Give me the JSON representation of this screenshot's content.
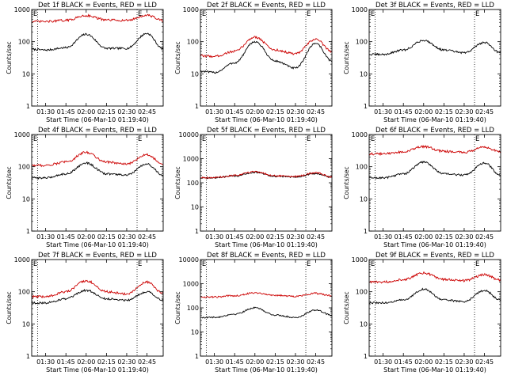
{
  "colors": {
    "events": "#000000",
    "lld": "#cc0000",
    "background": "#ffffff",
    "axis": "#000000"
  },
  "chart_data": [
    {
      "type": "line",
      "title": "Det 1f BLACK = Events, RED = LLD",
      "xlabel": "Start Time (06-Mar-10 01:19:40)",
      "ylabel": "Counts/sec",
      "yscale": "log",
      "ylim": [
        1,
        1000
      ],
      "y_ticks": [
        "1",
        "10",
        "100",
        "1000"
      ],
      "x_ticks": [
        "01:30",
        "01:45",
        "02:00",
        "02:15",
        "02:30",
        "02:45"
      ],
      "xlim": [
        "01:19:40",
        "02:57:00"
      ],
      "markers": [
        {
          "label": "E",
          "time": "01:20:10"
        },
        {
          "label": "E",
          "time": "02:37:40"
        }
      ],
      "vlines": [
        "01:24:00",
        "02:37:40"
      ],
      "series": [
        {
          "name": "Events",
          "color": "black",
          "knots": [
            [
              "01:19:40",
              58
            ],
            [
              "01:30",
              55
            ],
            [
              "01:45",
              65
            ],
            [
              "02:00",
              170
            ],
            [
              "02:15",
              62
            ],
            [
              "02:30",
              62
            ],
            [
              "02:45",
              180
            ],
            [
              "02:57",
              60
            ]
          ]
        },
        {
          "name": "LLD",
          "color": "red",
          "knots": [
            [
              "01:19:40",
              420
            ],
            [
              "01:30",
              420
            ],
            [
              "01:45",
              460
            ],
            [
              "02:00",
              650
            ],
            [
              "02:15",
              470
            ],
            [
              "02:30",
              460
            ],
            [
              "02:45",
              660
            ],
            [
              "02:57",
              460
            ]
          ]
        }
      ]
    },
    {
      "type": "line",
      "title": "Det 2f BLACK = Events, RED = LLD",
      "xlabel": "Start Time (06-Mar-10 01:19:40)",
      "ylabel": "Counts/sec",
      "yscale": "log",
      "ylim": [
        1,
        1000
      ],
      "y_ticks": [
        "1",
        "10",
        "100",
        "1000"
      ],
      "x_ticks": [
        "01:30",
        "01:45",
        "02:00",
        "02:15",
        "02:30",
        "02:45"
      ],
      "xlim": [
        "01:19:40",
        "02:57:00"
      ],
      "markers": [
        {
          "label": "E",
          "time": "01:20:10"
        },
        {
          "label": "E",
          "time": "02:37:40"
        }
      ],
      "vlines": [
        "01:24:00",
        "02:37:40"
      ],
      "series": [
        {
          "name": "Events",
          "color": "black",
          "knots": [
            [
              "01:19:40",
              12
            ],
            [
              "01:30",
              11
            ],
            [
              "01:45",
              22
            ],
            [
              "02:00",
              100
            ],
            [
              "02:15",
              25
            ],
            [
              "02:30",
              15
            ],
            [
              "02:45",
              90
            ],
            [
              "02:57",
              25
            ]
          ]
        },
        {
          "name": "LLD",
          "color": "red",
          "knots": [
            [
              "01:19:40",
              36
            ],
            [
              "01:30",
              35
            ],
            [
              "01:45",
              50
            ],
            [
              "02:00",
              140
            ],
            [
              "02:15",
              55
            ],
            [
              "02:30",
              42
            ],
            [
              "02:45",
              120
            ],
            [
              "02:57",
              50
            ]
          ]
        }
      ]
    },
    {
      "type": "line",
      "title": "Det 3f BLACK = Events, RED = LLD",
      "xlabel": "Start Time (06-Mar-10 01:19:40)",
      "ylabel": "Counts/sec",
      "yscale": "log",
      "ylim": [
        1,
        1000
      ],
      "y_ticks": [
        "1",
        "10",
        "100",
        "1000"
      ],
      "x_ticks": [
        "01:30",
        "01:45",
        "02:00",
        "02:15",
        "02:30",
        "02:45"
      ],
      "xlim": [
        "01:19:40",
        "02:57:00"
      ],
      "markers": [
        {
          "label": "E",
          "time": "01:20:10"
        },
        {
          "label": "E",
          "time": "02:37:40"
        }
      ],
      "vlines": [
        "01:24:00",
        "02:37:40"
      ],
      "series": [
        {
          "name": "Events",
          "color": "black",
          "knots": [
            [
              "01:19:40",
              40
            ],
            [
              "01:30",
              40
            ],
            [
              "01:45",
              55
            ],
            [
              "02:00",
              110
            ],
            [
              "02:15",
              55
            ],
            [
              "02:30",
              45
            ],
            [
              "02:45",
              95
            ],
            [
              "02:57",
              45
            ]
          ]
        }
      ]
    },
    {
      "type": "line",
      "title": "Det 4f BLACK = Events, RED = LLD",
      "xlabel": "Start Time (06-Mar-10 01:19:40)",
      "ylabel": "Counts/sec",
      "yscale": "log",
      "ylim": [
        1,
        1000
      ],
      "y_ticks": [
        "1",
        "10",
        "100",
        "1000"
      ],
      "x_ticks": [
        "01:30",
        "01:45",
        "02:00",
        "02:15",
        "02:30",
        "02:45"
      ],
      "xlim": [
        "01:19:40",
        "02:57:00"
      ],
      "markers": [
        {
          "label": "E",
          "time": "01:20:10"
        },
        {
          "label": "E",
          "time": "02:37:40"
        }
      ],
      "vlines": [
        "01:24:00",
        "02:37:40"
      ],
      "series": [
        {
          "name": "Events",
          "color": "black",
          "knots": [
            [
              "01:19:40",
              45
            ],
            [
              "01:30",
              45
            ],
            [
              "01:45",
              60
            ],
            [
              "02:00",
              130
            ],
            [
              "02:15",
              60
            ],
            [
              "02:30",
              55
            ],
            [
              "02:45",
              120
            ],
            [
              "02:57",
              55
            ]
          ]
        },
        {
          "name": "LLD",
          "color": "red",
          "knots": [
            [
              "01:19:40",
              110
            ],
            [
              "01:30",
              110
            ],
            [
              "01:45",
              140
            ],
            [
              "02:00",
              280
            ],
            [
              "02:15",
              140
            ],
            [
              "02:30",
              120
            ],
            [
              "02:45",
              240
            ],
            [
              "02:57",
              120
            ]
          ]
        }
      ]
    },
    {
      "type": "line",
      "title": "Det 5f BLACK = Events, RED = LLD",
      "xlabel": "Start Time (06-Mar-10 01:19:40)",
      "ylabel": "Counts/sec",
      "yscale": "log",
      "ylim": [
        1,
        10000
      ],
      "y_ticks": [
        "1",
        "10",
        "100",
        "1000",
        "10000"
      ],
      "x_ticks": [
        "01:30",
        "01:45",
        "02:00",
        "02:15",
        "02:30",
        "02:45"
      ],
      "xlim": [
        "01:19:40",
        "02:57:00"
      ],
      "markers": [
        {
          "label": "E",
          "time": "01:20:10"
        },
        {
          "label": "E",
          "time": "02:37:40"
        }
      ],
      "vlines": [
        "01:24:00",
        "02:37:40"
      ],
      "series": [
        {
          "name": "Events",
          "color": "black",
          "knots": [
            [
              "01:19:40",
              160
            ],
            [
              "01:30",
              160
            ],
            [
              "01:45",
              190
            ],
            [
              "02:00",
              270
            ],
            [
              "02:15",
              185
            ],
            [
              "02:30",
              175
            ],
            [
              "02:45",
              240
            ],
            [
              "02:57",
              170
            ]
          ]
        },
        {
          "name": "LLD",
          "color": "red",
          "knots": [
            [
              "01:19:40",
              165
            ],
            [
              "01:30",
              165
            ],
            [
              "01:45",
              200
            ],
            [
              "02:00",
              290
            ],
            [
              "02:15",
              195
            ],
            [
              "02:30",
              180
            ],
            [
              "02:45",
              260
            ],
            [
              "02:57",
              175
            ]
          ]
        }
      ]
    },
    {
      "type": "line",
      "title": "Det 6f BLACK = Events, RED = LLD",
      "xlabel": "Start Time (06-Mar-10 01:19:40)",
      "ylabel": "Counts/sec",
      "yscale": "log",
      "ylim": [
        1,
        1000
      ],
      "y_ticks": [
        "1",
        "10",
        "100",
        "1000"
      ],
      "x_ticks": [
        "01:30",
        "01:45",
        "02:00",
        "02:15",
        "02:30",
        "02:45"
      ],
      "xlim": [
        "01:19:40",
        "02:57:00"
      ],
      "markers": [
        {
          "label": "E",
          "time": "01:20:10"
        },
        {
          "label": "E",
          "time": "02:37:40"
        }
      ],
      "vlines": [
        "01:24:00",
        "02:37:40"
      ],
      "series": [
        {
          "name": "Events",
          "color": "black",
          "knots": [
            [
              "01:19:40",
              45
            ],
            [
              "01:30",
              45
            ],
            [
              "01:45",
              60
            ],
            [
              "02:00",
              140
            ],
            [
              "02:15",
              60
            ],
            [
              "02:30",
              55
            ],
            [
              "02:45",
              130
            ],
            [
              "02:57",
              55
            ]
          ]
        },
        {
          "name": "LLD",
          "color": "red",
          "knots": [
            [
              "01:19:40",
              250
            ],
            [
              "01:30",
              250
            ],
            [
              "01:45",
              290
            ],
            [
              "02:00",
              420
            ],
            [
              "02:15",
              300
            ],
            [
              "02:30",
              280
            ],
            [
              "02:45",
              400
            ],
            [
              "02:57",
              290
            ]
          ]
        }
      ]
    },
    {
      "type": "line",
      "title": "Det 7f BLACK = Events, RED = LLD",
      "xlabel": "Start Time (06-Mar-10 01:19:40)",
      "ylabel": "Counts/sec",
      "yscale": "log",
      "ylim": [
        1,
        1000
      ],
      "y_ticks": [
        "1",
        "10",
        "100",
        "1000"
      ],
      "x_ticks": [
        "01:30",
        "01:45",
        "02:00",
        "02:15",
        "02:30",
        "02:45"
      ],
      "xlim": [
        "01:19:40",
        "02:57:00"
      ],
      "markers": [
        {
          "label": "E",
          "time": "01:20:10"
        },
        {
          "label": "E",
          "time": "02:37:40"
        }
      ],
      "vlines": [
        "01:24:00",
        "02:37:40"
      ],
      "series": [
        {
          "name": "Events",
          "color": "black",
          "knots": [
            [
              "01:19:40",
              45
            ],
            [
              "01:30",
              45
            ],
            [
              "01:45",
              60
            ],
            [
              "02:00",
              110
            ],
            [
              "02:15",
              60
            ],
            [
              "02:30",
              55
            ],
            [
              "02:45",
              100
            ],
            [
              "02:57",
              55
            ]
          ]
        },
        {
          "name": "LLD",
          "color": "red",
          "knots": [
            [
              "01:19:40",
              70
            ],
            [
              "01:30",
              70
            ],
            [
              "01:45",
              100
            ],
            [
              "02:00",
              220
            ],
            [
              "02:15",
              100
            ],
            [
              "02:30",
              85
            ],
            [
              "02:45",
              200
            ],
            [
              "02:57",
              90
            ]
          ]
        }
      ]
    },
    {
      "type": "line",
      "title": "Det 8f BLACK = Events, RED = LLD",
      "xlabel": "Start Time (06-Mar-10 01:19:40)",
      "ylabel": "Counts/sec",
      "yscale": "log",
      "ylim": [
        1,
        10000
      ],
      "y_ticks": [
        "1",
        "10",
        "100",
        "1000",
        "10000"
      ],
      "x_ticks": [
        "01:30",
        "01:45",
        "02:00",
        "02:15",
        "02:30",
        "02:45"
      ],
      "xlim": [
        "01:19:40",
        "02:57:00"
      ],
      "markers": [
        {
          "label": "E",
          "time": "01:20:10"
        },
        {
          "label": "E",
          "time": "02:37:40"
        }
      ],
      "vlines": [
        "01:24:00",
        "02:37:40"
      ],
      "series": [
        {
          "name": "Events",
          "color": "black",
          "knots": [
            [
              "01:19:40",
              40
            ],
            [
              "01:30",
              40
            ],
            [
              "01:45",
              55
            ],
            [
              "02:00",
              100
            ],
            [
              "02:15",
              50
            ],
            [
              "02:30",
              40
            ],
            [
              "02:45",
              80
            ],
            [
              "02:57",
              50
            ]
          ]
        },
        {
          "name": "LLD",
          "color": "red",
          "knots": [
            [
              "01:19:40",
              280
            ],
            [
              "01:30",
              280
            ],
            [
              "01:45",
              320
            ],
            [
              "02:00",
              420
            ],
            [
              "02:15",
              330
            ],
            [
              "02:30",
              300
            ],
            [
              "02:45",
              400
            ],
            [
              "02:57",
              320
            ]
          ]
        }
      ]
    },
    {
      "type": "line",
      "title": "Det 9f BLACK = Events, RED = LLD",
      "xlabel": "Start Time (06-Mar-10 01:19:40)",
      "ylabel": "Counts/sec",
      "yscale": "log",
      "ylim": [
        1,
        1000
      ],
      "y_ticks": [
        "1",
        "10",
        "100",
        "1000"
      ],
      "x_ticks": [
        "01:30",
        "01:45",
        "02:00",
        "02:15",
        "02:30",
        "02:45"
      ],
      "xlim": [
        "01:19:40",
        "02:57:00"
      ],
      "markers": [
        {
          "label": "E",
          "time": "01:20:10"
        },
        {
          "label": "E",
          "time": "02:37:40"
        }
      ],
      "vlines": [
        "01:24:00",
        "02:37:40"
      ],
      "series": [
        {
          "name": "Events",
          "color": "black",
          "knots": [
            [
              "01:19:40",
              45
            ],
            [
              "01:30",
              45
            ],
            [
              "01:45",
              55
            ],
            [
              "02:00",
              120
            ],
            [
              "02:15",
              55
            ],
            [
              "02:30",
              50
            ],
            [
              "02:45",
              110
            ],
            [
              "02:57",
              55
            ]
          ]
        },
        {
          "name": "LLD",
          "color": "red",
          "knots": [
            [
              "01:19:40",
              200
            ],
            [
              "01:30",
              200
            ],
            [
              "01:45",
              240
            ],
            [
              "02:00",
              380
            ],
            [
              "02:15",
              240
            ],
            [
              "02:30",
              220
            ],
            [
              "02:45",
              340
            ],
            [
              "02:57",
              230
            ]
          ]
        }
      ]
    }
  ]
}
